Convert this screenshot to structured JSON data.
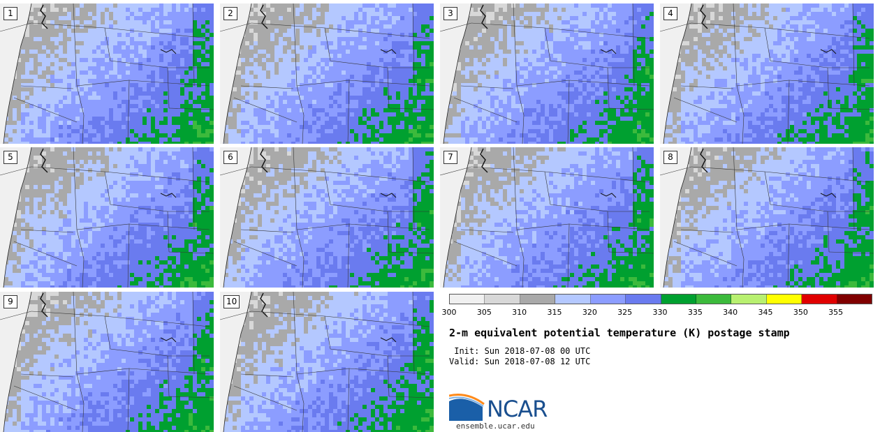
{
  "members": [
    {
      "label": "1"
    },
    {
      "label": "2"
    },
    {
      "label": "3"
    },
    {
      "label": "4"
    },
    {
      "label": "5"
    },
    {
      "label": "6"
    },
    {
      "label": "7"
    },
    {
      "label": "8"
    },
    {
      "label": "9"
    },
    {
      "label": "10"
    }
  ],
  "colorbar": {
    "levels": [
      "300",
      "305",
      "310",
      "315",
      "320",
      "325",
      "330",
      "335",
      "340",
      "345",
      "350",
      "355"
    ],
    "colors": [
      "#f0f0f0",
      "#d8d8d8",
      "#a9a9a9",
      "#b4c8ff",
      "#8c9dff",
      "#6a7bef",
      "#00a030",
      "#3cba3c",
      "#b8f070",
      "#ffff00",
      "#e00000",
      "#800000"
    ]
  },
  "title": "2-m equivalent potential temperature (K) postage stamp",
  "init_line": " Init: Sun 2018-07-08 00 UTC",
  "valid_line": "Valid: Sun 2018-07-08 12 UTC",
  "logo": {
    "name": "NCAR",
    "url": "ensemble.ucar.edu"
  },
  "units": "K"
}
